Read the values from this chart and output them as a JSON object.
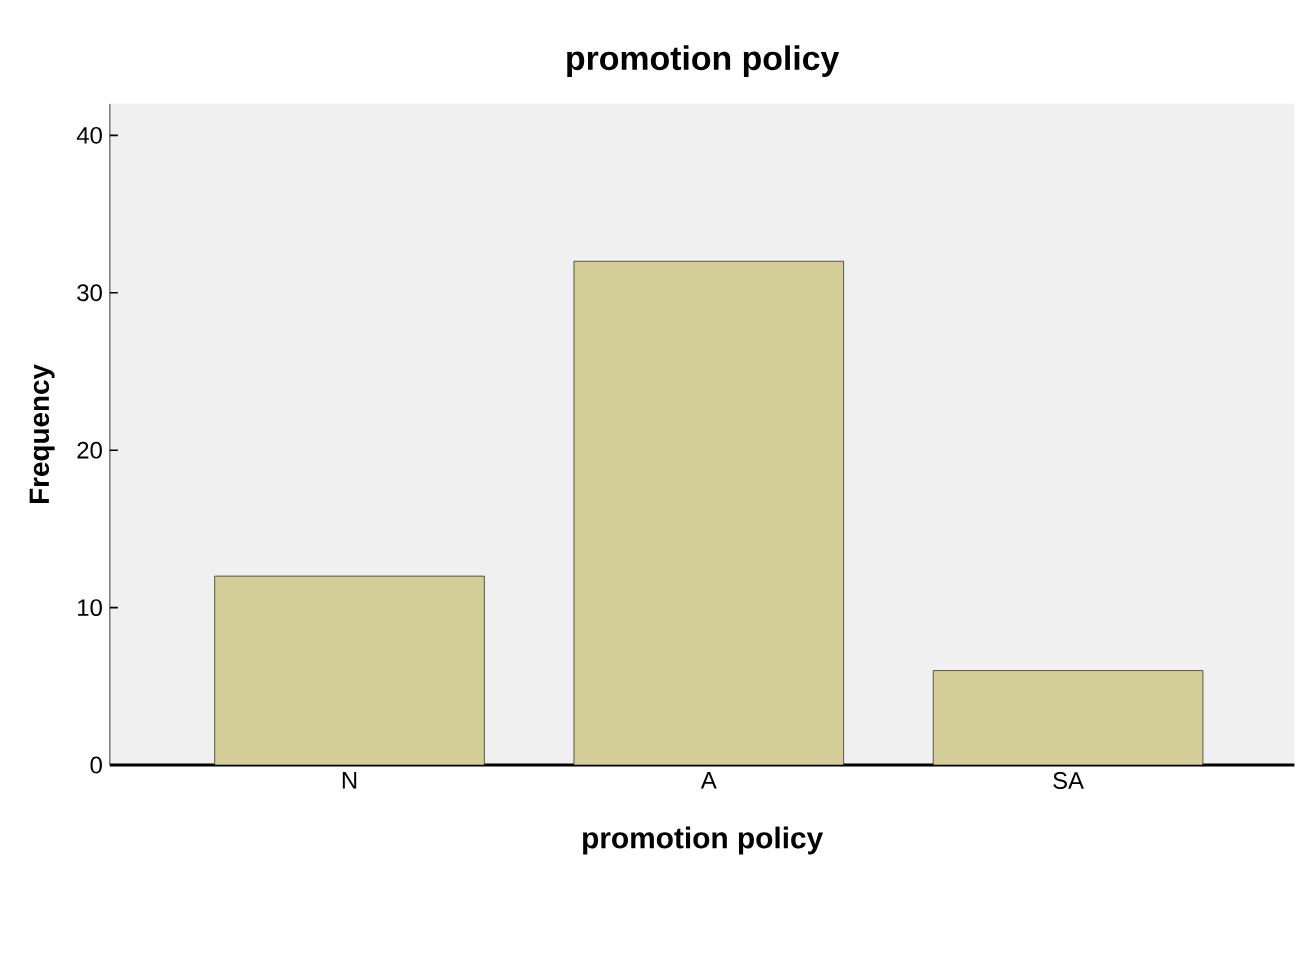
{
  "chart_data": {
    "type": "bar",
    "title": "promotion policy",
    "xlabel": "promotion policy",
    "ylabel": "Frequency",
    "categories": [
      "N",
      "A",
      "SA"
    ],
    "values": [
      12,
      32,
      6
    ],
    "color": "#d3ce97",
    "ylim": [
      0,
      42
    ],
    "yticks": [
      0,
      10,
      20,
      30,
      40
    ],
    "grid": false
  }
}
